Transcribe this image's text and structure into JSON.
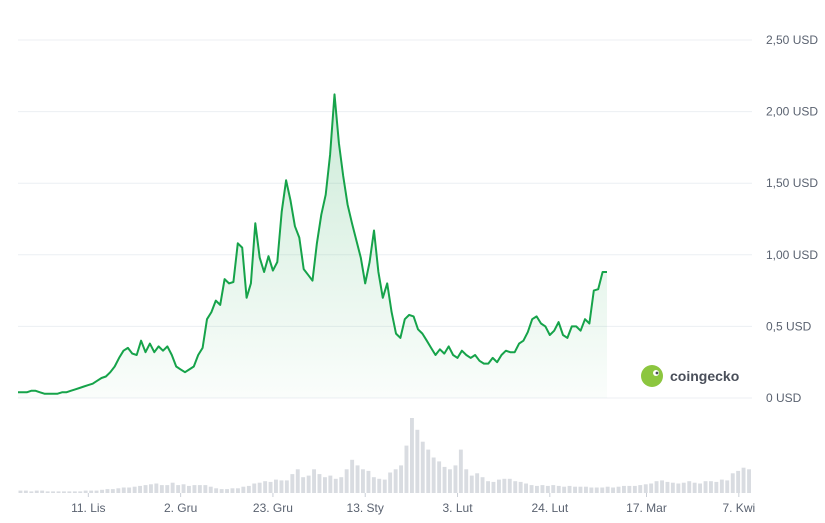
{
  "brand": {
    "name": "coingecko",
    "icon": "gecko-logo-icon"
  },
  "colors": {
    "line": "#16a34a",
    "area_top": "#16a34a",
    "volume": "#d9dce1",
    "grid": "#eceff3",
    "text": "#5a6270"
  },
  "chart_data": {
    "type": "area",
    "y_unit": "USD",
    "ylim": [
      0,
      2.5
    ],
    "y_ticks": [
      {
        "value": 0,
        "label": "0 USD"
      },
      {
        "value": 0.5,
        "label": "0,5 USD"
      },
      {
        "value": 1.0,
        "label": "1,00 USD"
      },
      {
        "value": 1.5,
        "label": "1,50 USD"
      },
      {
        "value": 2.0,
        "label": "2,00 USD"
      },
      {
        "value": 2.5,
        "label": "2,50 USD"
      }
    ],
    "x_start": "2023-10-26",
    "x_end": "2024-04-10",
    "x_ticks": [
      {
        "date": "2023-11-11",
        "label": "11. Lis"
      },
      {
        "date": "2023-12-02",
        "label": "2. Gru"
      },
      {
        "date": "2023-12-23",
        "label": "23. Gru"
      },
      {
        "date": "2024-01-13",
        "label": "13. Sty"
      },
      {
        "date": "2024-02-03",
        "label": "3. Lut"
      },
      {
        "date": "2024-02-24",
        "label": "24. Lut"
      },
      {
        "date": "2024-03-17",
        "label": "17. Mar"
      },
      {
        "date": "2024-04-07",
        "label": "7. Kwi"
      }
    ],
    "grid": true,
    "series": [
      {
        "values": [
          [
            "2023-10-26",
            0.04
          ],
          [
            "2023-10-27",
            0.04
          ],
          [
            "2023-10-28",
            0.04
          ],
          [
            "2023-10-29",
            0.05
          ],
          [
            "2023-10-30",
            0.05
          ],
          [
            "2023-10-31",
            0.04
          ],
          [
            "2023-11-01",
            0.03
          ],
          [
            "2023-11-02",
            0.03
          ],
          [
            "2023-11-03",
            0.03
          ],
          [
            "2023-11-04",
            0.03
          ],
          [
            "2023-11-05",
            0.04
          ],
          [
            "2023-11-06",
            0.04
          ],
          [
            "2023-11-07",
            0.05
          ],
          [
            "2023-11-08",
            0.06
          ],
          [
            "2023-11-09",
            0.07
          ],
          [
            "2023-11-10",
            0.08
          ],
          [
            "2023-11-11",
            0.09
          ],
          [
            "2023-11-12",
            0.1
          ],
          [
            "2023-11-13",
            0.12
          ],
          [
            "2023-11-14",
            0.14
          ],
          [
            "2023-11-15",
            0.15
          ],
          [
            "2023-11-16",
            0.18
          ],
          [
            "2023-11-17",
            0.22
          ],
          [
            "2023-11-18",
            0.28
          ],
          [
            "2023-11-19",
            0.33
          ],
          [
            "2023-11-20",
            0.35
          ],
          [
            "2023-11-21",
            0.31
          ],
          [
            "2023-11-22",
            0.3
          ],
          [
            "2023-11-23",
            0.4
          ],
          [
            "2023-11-24",
            0.32
          ],
          [
            "2023-11-25",
            0.38
          ],
          [
            "2023-11-26",
            0.32
          ],
          [
            "2023-11-27",
            0.36
          ],
          [
            "2023-11-28",
            0.33
          ],
          [
            "2023-11-29",
            0.36
          ],
          [
            "2023-11-30",
            0.3
          ],
          [
            "2023-12-01",
            0.22
          ],
          [
            "2023-12-02",
            0.2
          ],
          [
            "2023-12-03",
            0.18
          ],
          [
            "2023-12-04",
            0.2
          ],
          [
            "2023-12-05",
            0.22
          ],
          [
            "2023-12-06",
            0.3
          ],
          [
            "2023-12-07",
            0.35
          ],
          [
            "2023-12-08",
            0.55
          ],
          [
            "2023-12-09",
            0.6
          ],
          [
            "2023-12-10",
            0.68
          ],
          [
            "2023-12-11",
            0.65
          ],
          [
            "2023-12-12",
            0.83
          ],
          [
            "2023-12-13",
            0.8
          ],
          [
            "2023-12-14",
            0.81
          ],
          [
            "2023-12-15",
            1.08
          ],
          [
            "2023-12-16",
            1.05
          ],
          [
            "2023-12-17",
            0.7
          ],
          [
            "2023-12-18",
            0.8
          ],
          [
            "2023-12-19",
            1.22
          ],
          [
            "2023-12-20",
            0.98
          ],
          [
            "2023-12-21",
            0.88
          ],
          [
            "2023-12-22",
            0.99
          ],
          [
            "2023-12-23",
            0.89
          ],
          [
            "2023-12-24",
            0.95
          ],
          [
            "2023-12-25",
            1.3
          ],
          [
            "2023-12-26",
            1.52
          ],
          [
            "2023-12-27",
            1.38
          ],
          [
            "2023-12-28",
            1.2
          ],
          [
            "2023-12-29",
            1.12
          ],
          [
            "2023-12-30",
            0.9
          ],
          [
            "2023-12-31",
            0.86
          ],
          [
            "2024-01-01",
            0.82
          ],
          [
            "2024-01-02",
            1.08
          ],
          [
            "2024-01-03",
            1.28
          ],
          [
            "2024-01-04",
            1.42
          ],
          [
            "2024-01-05",
            1.7
          ],
          [
            "2024-01-06",
            2.12
          ],
          [
            "2024-01-07",
            1.78
          ],
          [
            "2024-01-08",
            1.55
          ],
          [
            "2024-01-09",
            1.35
          ],
          [
            "2024-01-10",
            1.22
          ],
          [
            "2024-01-11",
            1.1
          ],
          [
            "2024-01-12",
            0.98
          ],
          [
            "2024-01-13",
            0.8
          ],
          [
            "2024-01-14",
            0.95
          ],
          [
            "2024-01-15",
            1.17
          ],
          [
            "2024-01-16",
            0.88
          ],
          [
            "2024-01-17",
            0.7
          ],
          [
            "2024-01-18",
            0.8
          ],
          [
            "2024-01-19",
            0.6
          ],
          [
            "2024-01-20",
            0.45
          ],
          [
            "2024-01-21",
            0.42
          ],
          [
            "2024-01-22",
            0.55
          ],
          [
            "2024-01-23",
            0.58
          ],
          [
            "2024-01-24",
            0.57
          ],
          [
            "2024-01-25",
            0.48
          ],
          [
            "2024-01-26",
            0.45
          ],
          [
            "2024-01-27",
            0.4
          ],
          [
            "2024-01-28",
            0.35
          ],
          [
            "2024-01-29",
            0.3
          ],
          [
            "2024-01-30",
            0.34
          ],
          [
            "2024-01-31",
            0.31
          ],
          [
            "2024-02-01",
            0.36
          ],
          [
            "2024-02-02",
            0.3
          ],
          [
            "2024-02-03",
            0.28
          ],
          [
            "2024-02-04",
            0.33
          ],
          [
            "2024-02-05",
            0.3
          ],
          [
            "2024-02-06",
            0.28
          ],
          [
            "2024-02-07",
            0.3
          ],
          [
            "2024-02-08",
            0.26
          ],
          [
            "2024-02-09",
            0.24
          ],
          [
            "2024-02-10",
            0.24
          ],
          [
            "2024-02-11",
            0.28
          ],
          [
            "2024-02-12",
            0.25
          ],
          [
            "2024-02-13",
            0.3
          ],
          [
            "2024-02-14",
            0.33
          ],
          [
            "2024-02-15",
            0.32
          ],
          [
            "2024-02-16",
            0.32
          ],
          [
            "2024-02-17",
            0.38
          ],
          [
            "2024-02-18",
            0.4
          ],
          [
            "2024-02-19",
            0.46
          ],
          [
            "2024-02-20",
            0.55
          ],
          [
            "2024-02-21",
            0.57
          ],
          [
            "2024-02-22",
            0.52
          ],
          [
            "2024-02-23",
            0.5
          ],
          [
            "2024-02-24",
            0.44
          ],
          [
            "2024-02-25",
            0.47
          ],
          [
            "2024-02-26",
            0.53
          ],
          [
            "2024-02-27",
            0.44
          ],
          [
            "2024-02-28",
            0.42
          ],
          [
            "2024-02-29",
            0.5
          ],
          [
            "2024-03-01",
            0.5
          ],
          [
            "2024-03-02",
            0.47
          ],
          [
            "2024-03-03",
            0.55
          ],
          [
            "2024-03-04",
            0.52
          ],
          [
            "2024-03-05",
            0.75
          ],
          [
            "2024-03-06",
            0.76
          ],
          [
            "2024-03-07",
            0.88
          ],
          [
            "2024-03-08",
            0.88
          ]
        ]
      }
    ],
    "volume_values": [
      0.03,
      0.03,
      0.02,
      0.03,
      0.03,
      0.02,
      0.02,
      0.02,
      0.02,
      0.02,
      0.02,
      0.02,
      0.03,
      0.03,
      0.03,
      0.04,
      0.05,
      0.05,
      0.06,
      0.07,
      0.07,
      0.08,
      0.09,
      0.1,
      0.11,
      0.12,
      0.1,
      0.1,
      0.13,
      0.1,
      0.11,
      0.09,
      0.1,
      0.1,
      0.1,
      0.08,
      0.06,
      0.05,
      0.05,
      0.06,
      0.06,
      0.08,
      0.09,
      0.12,
      0.13,
      0.15,
      0.14,
      0.17,
      0.16,
      0.16,
      0.24,
      0.3,
      0.2,
      0.22,
      0.3,
      0.24,
      0.2,
      0.22,
      0.18,
      0.2,
      0.3,
      0.42,
      0.35,
      0.3,
      0.28,
      0.2,
      0.18,
      0.17,
      0.26,
      0.3,
      0.35,
      0.6,
      0.95,
      0.8,
      0.65,
      0.55,
      0.45,
      0.4,
      0.33,
      0.3,
      0.35,
      0.55,
      0.3,
      0.22,
      0.25,
      0.2,
      0.15,
      0.14,
      0.17,
      0.18,
      0.18,
      0.15,
      0.14,
      0.12,
      0.1,
      0.09,
      0.1,
      0.09,
      0.1,
      0.09,
      0.08,
      0.09,
      0.08,
      0.08,
      0.08,
      0.07,
      0.07,
      0.07,
      0.08,
      0.07,
      0.08,
      0.09,
      0.09,
      0.09,
      0.1,
      0.11,
      0.12,
      0.15,
      0.16,
      0.14,
      0.13,
      0.12,
      0.13,
      0.15,
      0.13,
      0.12,
      0.15,
      0.15,
      0.14,
      0.17,
      0.16,
      0.25,
      0.28,
      0.32,
      0.3
    ]
  }
}
